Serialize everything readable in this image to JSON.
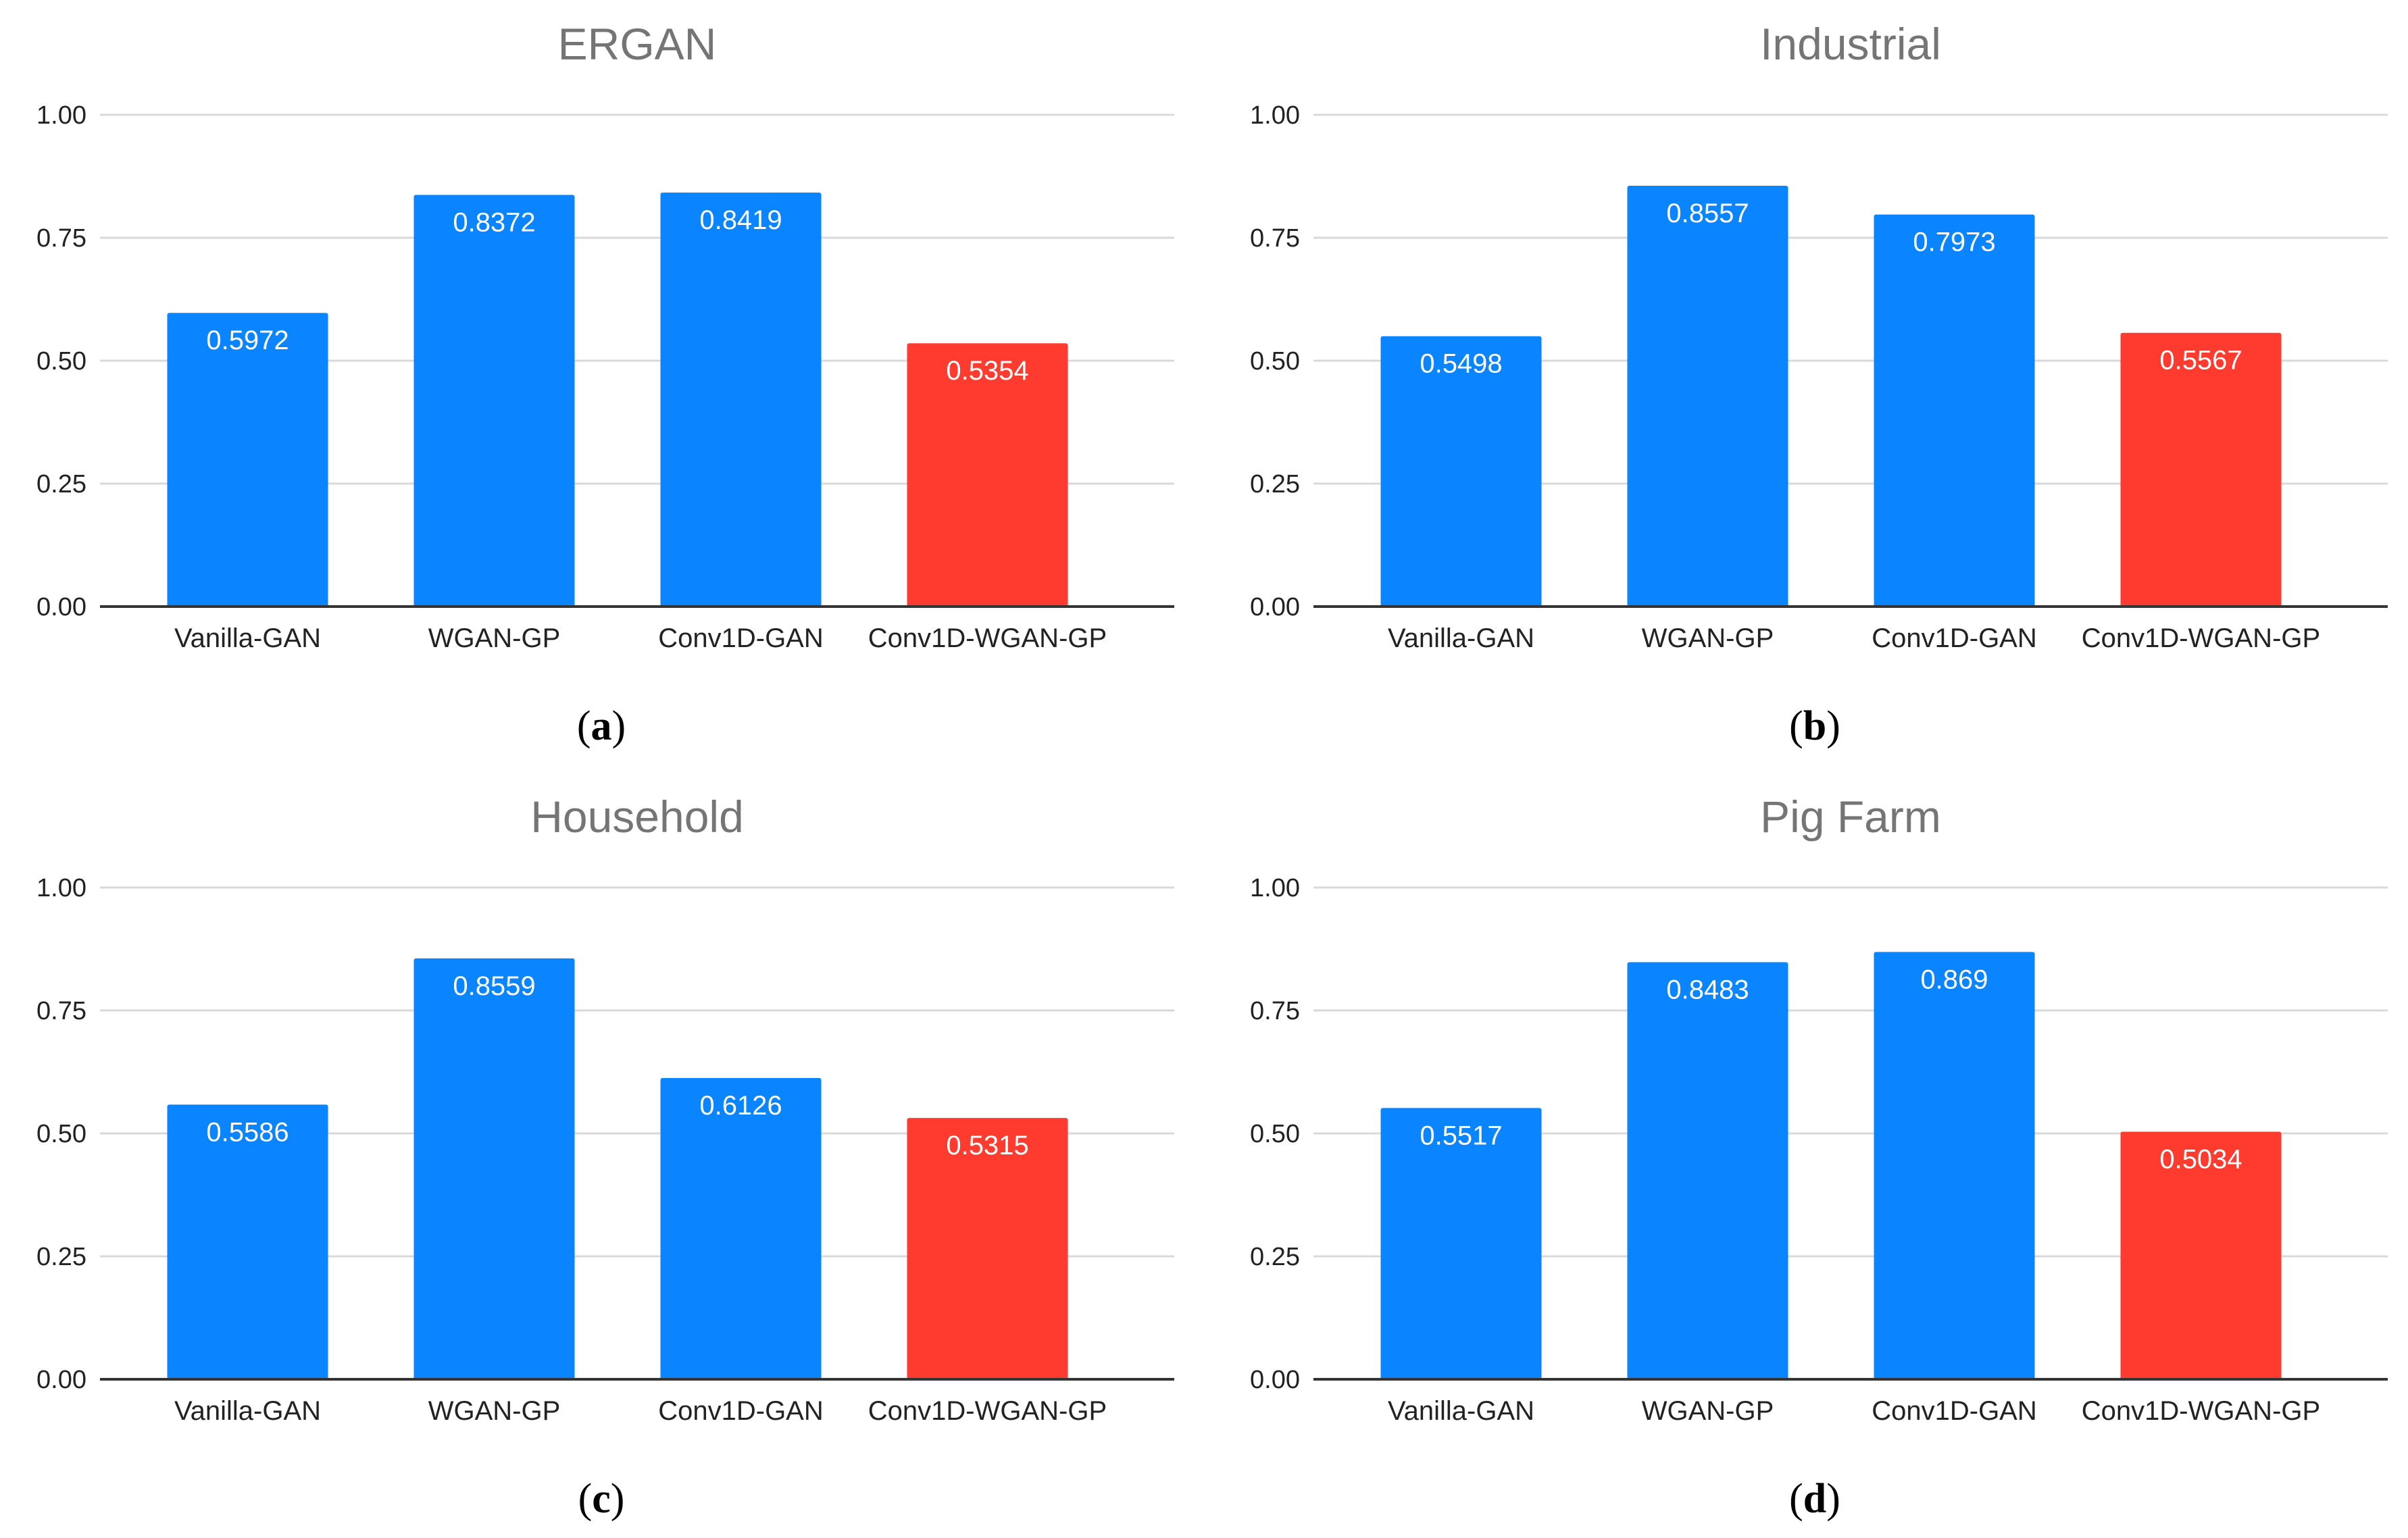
{
  "colors": {
    "bar_default": "#0A84FF",
    "bar_highlight": "#FF3B30",
    "grid": "#D9D9D9",
    "title": "#757575"
  },
  "chart_data": [
    {
      "type": "bar",
      "panel": "(a)",
      "panel_letter": "a",
      "title": "ERGAN",
      "categories": [
        "Vanilla-GAN",
        "WGAN-GP",
        "Conv1D-GAN",
        "Conv1D-WGAN-GP"
      ],
      "values": [
        0.5972,
        0.8372,
        0.8419,
        0.5354
      ],
      "value_labels": [
        "0.5972",
        "0.8372",
        "0.8419",
        "0.5354"
      ],
      "highlight_index": 3,
      "yticks": [
        "0.00",
        "0.25",
        "0.50",
        "0.75",
        "1.00"
      ],
      "ylim": [
        0,
        1
      ],
      "xlabel": "",
      "ylabel": ""
    },
    {
      "type": "bar",
      "panel": "(b)",
      "panel_letter": "b",
      "title": "Industrial",
      "categories": [
        "Vanilla-GAN",
        "WGAN-GP",
        "Conv1D-GAN",
        "Conv1D-WGAN-GP"
      ],
      "values": [
        0.5498,
        0.8557,
        0.7973,
        0.5567
      ],
      "value_labels": [
        "0.5498",
        "0.8557",
        "0.7973",
        "0.5567"
      ],
      "highlight_index": 3,
      "yticks": [
        "0.00",
        "0.25",
        "0.50",
        "0.75",
        "1.00"
      ],
      "ylim": [
        0,
        1
      ],
      "xlabel": "",
      "ylabel": ""
    },
    {
      "type": "bar",
      "panel": "(c)",
      "panel_letter": "c",
      "title": "Household",
      "categories": [
        "Vanilla-GAN",
        "WGAN-GP",
        "Conv1D-GAN",
        "Conv1D-WGAN-GP"
      ],
      "values": [
        0.5586,
        0.8559,
        0.6126,
        0.5315
      ],
      "value_labels": [
        "0.5586",
        "0.8559",
        "0.6126",
        "0.5315"
      ],
      "highlight_index": 3,
      "yticks": [
        "0.00",
        "0.25",
        "0.50",
        "0.75",
        "1.00"
      ],
      "ylim": [
        0,
        1
      ],
      "xlabel": "",
      "ylabel": ""
    },
    {
      "type": "bar",
      "panel": "(d)",
      "panel_letter": "d",
      "title": "Pig Farm",
      "categories": [
        "Vanilla-GAN",
        "WGAN-GP",
        "Conv1D-GAN",
        "Conv1D-WGAN-GP"
      ],
      "values": [
        0.5517,
        0.8483,
        0.869,
        0.5034
      ],
      "value_labels": [
        "0.5517",
        "0.8483",
        "0.869",
        "0.5034"
      ],
      "highlight_index": 3,
      "yticks": [
        "0.00",
        "0.25",
        "0.50",
        "0.75",
        "1.00"
      ],
      "ylim": [
        0,
        1
      ],
      "xlabel": "",
      "ylabel": ""
    }
  ]
}
